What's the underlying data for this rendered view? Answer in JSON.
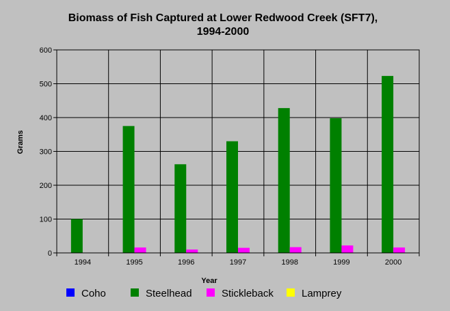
{
  "chart_data": {
    "type": "bar",
    "title": [
      "Biomass of Fish Captured at Lower Redwood Creek (SFT7),",
      "1994-2000"
    ],
    "xlabel": "Year",
    "ylabel": "Grams",
    "ylim": [
      0,
      600
    ],
    "yticks": [
      0,
      100,
      200,
      300,
      400,
      500,
      600
    ],
    "categories": [
      "1994",
      "1995",
      "1996",
      "1997",
      "1998",
      "1999",
      "2000"
    ],
    "grid": true,
    "legend_position": "bottom",
    "series": [
      {
        "name": "Coho",
        "color": "#0000ff",
        "values": [
          0,
          0,
          0,
          0,
          0,
          0,
          0
        ]
      },
      {
        "name": "Steelhead",
        "color": "#008000",
        "values": [
          100,
          375,
          262,
          330,
          428,
          398,
          523
        ]
      },
      {
        "name": "Stickleback",
        "color": "#ff00ff",
        "values": [
          0,
          16,
          10,
          15,
          17,
          22,
          16
        ]
      },
      {
        "name": "Lamprey",
        "color": "#ffff00",
        "values": [
          0,
          0,
          0,
          0,
          0,
          0,
          0
        ]
      }
    ]
  }
}
